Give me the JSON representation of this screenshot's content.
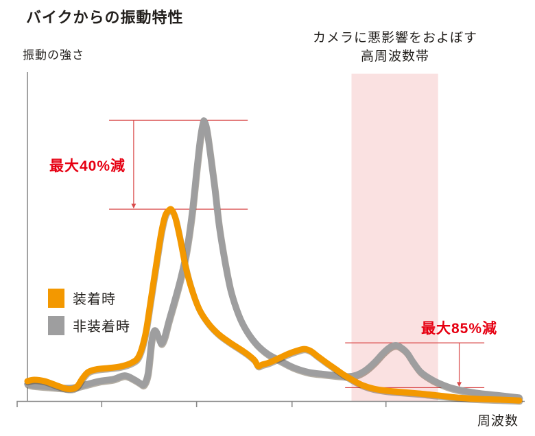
{
  "title": "バイクからの振動特性",
  "y_axis_label": "振動の強さ",
  "x_axis_label": "周波数",
  "band_label": {
    "line1": "カメラに悪影響をおよぼす",
    "line2": "高周波数帯"
  },
  "legend": [
    {
      "label": "装着時",
      "color": "#F39800"
    },
    {
      "label": "非装着時",
      "color": "#9E9E9F"
    }
  ],
  "colors": {
    "accent_orange": "#F39800",
    "series_gray": "#9E9E9F",
    "band_pink": "#FAE1E1",
    "annotation_text_red": "#E60012",
    "annotation_line_red": "#D94A4A",
    "axis_gray": "#8A8A8A",
    "text_dark": "#221F1C",
    "background": "#FFFFFF"
  },
  "chart_data": {
    "type": "line",
    "title": "バイクからの振動特性",
    "xlabel": "周波数",
    "ylabel": "振動の強さ",
    "x_unit": "relative frequency (no numeric scale shown)",
    "y_unit": "relative vibration intensity (no numeric scale shown)",
    "xlim": [
      0,
      100
    ],
    "ylim": [
      0,
      117
    ],
    "grid": false,
    "legend_position": "middle-left",
    "x_ticks": [
      15.1,
      34.4,
      53.8,
      72.9
    ],
    "series": [
      {
        "name": "装着時",
        "color": "#F39800",
        "points": [
          [
            0,
            7.1
          ],
          [
            1.4,
            7.6
          ],
          [
            3.5,
            7.1
          ],
          [
            5.9,
            5.6
          ],
          [
            7.9,
            4.4
          ],
          [
            9.3,
            4.4
          ],
          [
            10.2,
            5.4
          ],
          [
            11.2,
            8.1
          ],
          [
            12.3,
            10.3
          ],
          [
            13.9,
            11.3
          ],
          [
            16.5,
            11.8
          ],
          [
            18.8,
            12.3
          ],
          [
            21.2,
            13.7
          ],
          [
            22.7,
            16.2
          ],
          [
            24,
            24
          ],
          [
            25.1,
            36.3
          ],
          [
            26.2,
            49
          ],
          [
            27.2,
            60
          ],
          [
            28,
            66.2
          ],
          [
            28.7,
            68.1
          ],
          [
            29.3,
            68.4
          ],
          [
            30.1,
            65.4
          ],
          [
            31.1,
            57.6
          ],
          [
            32.2,
            47.8
          ],
          [
            33.5,
            39.5
          ],
          [
            35,
            32.6
          ],
          [
            36.8,
            27.7
          ],
          [
            38.8,
            24
          ],
          [
            41,
            21.1
          ],
          [
            43.2,
            18.6
          ],
          [
            45,
            16.4
          ],
          [
            46.2,
            14.5
          ],
          [
            46.9,
            12.5
          ],
          [
            47.7,
            13
          ],
          [
            49.1,
            13.7
          ],
          [
            51,
            15.2
          ],
          [
            53.1,
            16.9
          ],
          [
            55,
            18.1
          ],
          [
            56.3,
            18.6
          ],
          [
            57.6,
            17.9
          ],
          [
            59.1,
            15.9
          ],
          [
            60.8,
            13.7
          ],
          [
            62.6,
            11.5
          ],
          [
            64.4,
            9.3
          ],
          [
            66.2,
            7.4
          ],
          [
            68.2,
            5.6
          ],
          [
            70.4,
            4.4
          ],
          [
            72.9,
            3.7
          ],
          [
            76,
            3.2
          ],
          [
            79.5,
            2.7
          ],
          [
            83.4,
            2
          ],
          [
            87.6,
            1.2
          ],
          [
            92.1,
            0.7
          ],
          [
            96.2,
            0.5
          ],
          [
            100,
            0.2
          ]
        ]
      },
      {
        "name": "非装着時",
        "color": "#9E9E9F",
        "points": [
          [
            0,
            6.1
          ],
          [
            1.1,
            5.6
          ],
          [
            4.2,
            5.1
          ],
          [
            7,
            4.7
          ],
          [
            9.1,
            4.7
          ],
          [
            11.9,
            5.9
          ],
          [
            14.6,
            7.1
          ],
          [
            17.4,
            7.8
          ],
          [
            19.8,
            9.1
          ],
          [
            21.8,
            7.6
          ],
          [
            22.9,
            6.4
          ],
          [
            23.7,
            5.9
          ],
          [
            24.5,
            9.8
          ],
          [
            25.2,
            20.8
          ],
          [
            25.7,
            24.8
          ],
          [
            26.2,
            24.8
          ],
          [
            26.9,
            21.6
          ],
          [
            27.3,
            20.6
          ],
          [
            27.9,
            22.8
          ],
          [
            28.7,
            28.2
          ],
          [
            29.8,
            35
          ],
          [
            31.2,
            44.1
          ],
          [
            32.4,
            53.9
          ],
          [
            33.5,
            67.4
          ],
          [
            34.4,
            82.1
          ],
          [
            35.1,
            93.1
          ],
          [
            35.7,
            99.3
          ],
          [
            36,
            100
          ],
          [
            36.5,
            96.8
          ],
          [
            37.2,
            88.2
          ],
          [
            38.1,
            76
          ],
          [
            39,
            62.5
          ],
          [
            40.2,
            49.5
          ],
          [
            41.4,
            39.2
          ],
          [
            43,
            30.6
          ],
          [
            44.6,
            25
          ],
          [
            46.6,
            20.3
          ],
          [
            48.8,
            16.9
          ],
          [
            51.3,
            14.5
          ],
          [
            54.1,
            12
          ],
          [
            57.2,
            10.3
          ],
          [
            60.3,
            9.6
          ],
          [
            63,
            9.1
          ],
          [
            65.3,
            8.8
          ],
          [
            66.9,
            9.3
          ],
          [
            68.6,
            10.8
          ],
          [
            70.4,
            13.5
          ],
          [
            72.2,
            16.9
          ],
          [
            73.6,
            19.1
          ],
          [
            74.9,
            19.9
          ],
          [
            76,
            19.1
          ],
          [
            77.2,
            17.2
          ],
          [
            78.4,
            14
          ],
          [
            79.9,
            10.5
          ],
          [
            81.6,
            8.3
          ],
          [
            83.4,
            6.6
          ],
          [
            85.8,
            4.9
          ],
          [
            88.6,
            3.7
          ],
          [
            92.1,
            2.7
          ],
          [
            96,
            2
          ],
          [
            100,
            1.2
          ]
        ]
      }
    ],
    "highlight_band": {
      "label": "カメラに悪影響をおよぼす高周波数帯",
      "x_range": [
        65.9,
        83.5
      ],
      "color": "#FAE1E1"
    },
    "annotations": [
      {
        "label": "最大40%減",
        "reduction_percent": 40,
        "upper_value": 100.4,
        "lower_value": 68.6,
        "x_span": [
          16.6,
          44.8
        ],
        "arrow_x": 21.6
      },
      {
        "label": "最大85%減",
        "reduction_percent": 85,
        "upper_value": 20.8,
        "lower_value": 4.8,
        "x_span": [
          64.6,
          92.9
        ],
        "arrow_x": 87.8
      }
    ]
  }
}
